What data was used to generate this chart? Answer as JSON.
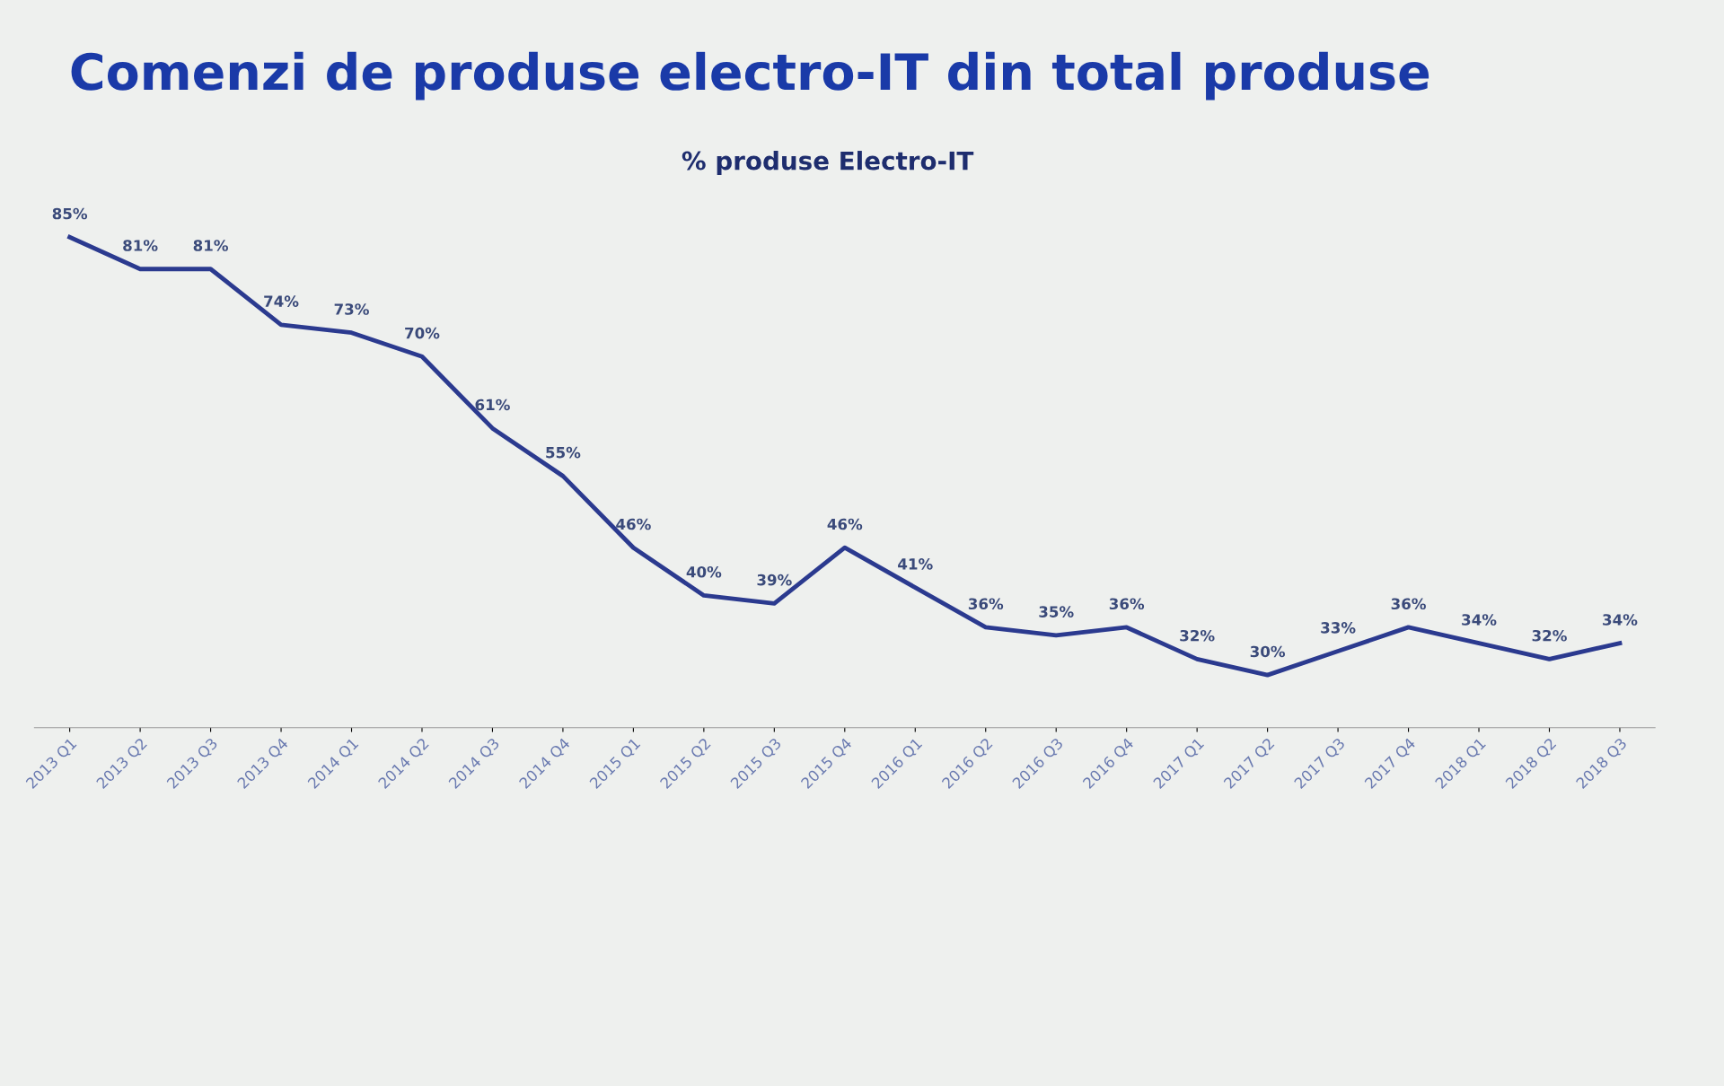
{
  "chart_data": {
    "type": "line",
    "title": "Comenzi de produse electro-IT din total produse",
    "subtitle": "% produse Electro-IT",
    "categories": [
      "2013 Q1",
      "2013 Q2",
      "2013 Q3",
      "2013 Q4",
      "2014 Q1",
      "2014 Q2",
      "2014 Q3",
      "2014 Q4",
      "2015 Q1",
      "2015 Q2",
      "2015 Q3",
      "2015 Q4",
      "2016 Q1",
      "2016 Q2",
      "2016 Q3",
      "2016 Q4",
      "2017 Q1",
      "2017 Q2",
      "2017 Q3",
      "2017 Q4",
      "2018 Q1",
      "2018 Q2",
      "2018 Q3"
    ],
    "series": [
      {
        "color": "#2b3a8f",
        "values": [
          85,
          81,
          81,
          74,
          73,
          70,
          61,
          55,
          46,
          40,
          39,
          46,
          41,
          36,
          35,
          36,
          32,
          30,
          33,
          36,
          34,
          32,
          34
        ],
        "value_labels": [
          "85%",
          "81%",
          "81%",
          "74%",
          "73%",
          "70%",
          "61%",
          "55%",
          "46%",
          "40%",
          "39%",
          "46%",
          "41%",
          "36%",
          "35%",
          "36%",
          "32%",
          "30%",
          "33%",
          "36%",
          "34%",
          "32%",
          "34%"
        ]
      }
    ],
    "grid": false,
    "legend": false,
    "marker": "none",
    "line_style": "solid",
    "tick_labels": "x"
  }
}
